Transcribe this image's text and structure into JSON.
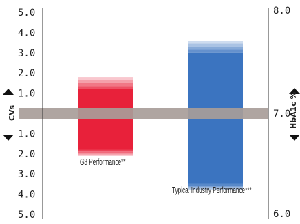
{
  "chart_data": {
    "type": "bar",
    "left_axis": {
      "label": "CVs",
      "ticks": [
        "5.0",
        "4.0",
        "3.0",
        "2.0",
        "1.0",
        "1.0",
        "2.0",
        "3.0",
        "4.0",
        "5.0"
      ],
      "values": [
        5,
        4,
        3,
        2,
        1,
        -1,
        -2,
        -3,
        -4,
        -5
      ],
      "range": [
        -5,
        5
      ]
    },
    "right_axis": {
      "label": "HbA1c %",
      "ticks": [
        "8.0",
        "7.0",
        "6.0"
      ],
      "values": [
        8,
        7,
        6
      ],
      "range": [
        6,
        8
      ]
    },
    "target_band": {
      "value": 0,
      "color": "#a89d99"
    },
    "series": [
      {
        "name": "G8 Performance**",
        "solid_range": [
          -1.8,
          1.2
        ],
        "fade_range": [
          -2.1,
          1.8
        ],
        "color": "#e8213a",
        "fade_color": "#f5a0a8"
      },
      {
        "name": "Typical Industry Performance***",
        "solid_range": [
          -3.5,
          3.0
        ],
        "fade_range": [
          -3.8,
          3.6
        ],
        "color": "#3b74c0",
        "fade_color": "#a8c2e6"
      }
    ],
    "arrows": {
      "up": "up-arrow",
      "down": "down-arrow"
    }
  }
}
